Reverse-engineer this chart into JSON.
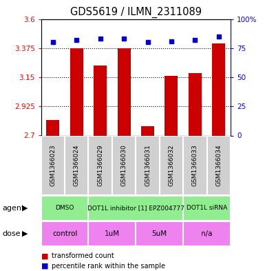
{
  "title": "GDS5619 / ILMN_2311089",
  "samples": [
    "GSM1366023",
    "GSM1366024",
    "GSM1366029",
    "GSM1366030",
    "GSM1366031",
    "GSM1366032",
    "GSM1366033",
    "GSM1366034"
  ],
  "bar_values": [
    2.82,
    3.375,
    3.24,
    3.375,
    2.77,
    3.16,
    3.18,
    3.41
  ],
  "percentile_values": [
    80,
    82,
    83,
    83,
    80,
    81,
    82,
    85
  ],
  "ylim_left": [
    2.7,
    3.6
  ],
  "ylim_right": [
    0,
    100
  ],
  "yticks_left": [
    2.7,
    2.925,
    3.15,
    3.375,
    3.6
  ],
  "yticks_right": [
    0,
    25,
    50,
    75,
    100
  ],
  "ytick_labels_left": [
    "2.7",
    "2.925",
    "3.15",
    "3.375",
    "3.6"
  ],
  "ytick_labels_right": [
    "0",
    "25",
    "50",
    "75",
    "100%"
  ],
  "bar_color": "#cc0000",
  "dot_color": "#0000cc",
  "sample_box_color": "#d0d0d0",
  "agent_color": "#90ee90",
  "dose_color": "#ee82ee",
  "agent_groups": [
    {
      "label": "DMSO",
      "start": 0,
      "end": 2
    },
    {
      "label": "DOT1L inhibitor [1] EPZ004777",
      "start": 2,
      "end": 6
    },
    {
      "label": "DOT1L siRNA",
      "start": 6,
      "end": 8
    }
  ],
  "dose_groups": [
    {
      "label": "control",
      "start": 0,
      "end": 2
    },
    {
      "label": "1uM",
      "start": 2,
      "end": 4
    },
    {
      "label": "5uM",
      "start": 4,
      "end": 6
    },
    {
      "label": "n/a",
      "start": 6,
      "end": 8
    }
  ],
  "legend_bar_label": "transformed count",
  "legend_dot_label": "percentile rank within the sample",
  "agent_label": "agent",
  "dose_label": "dose",
  "figsize": [
    3.85,
    3.93
  ],
  "dpi": 100
}
